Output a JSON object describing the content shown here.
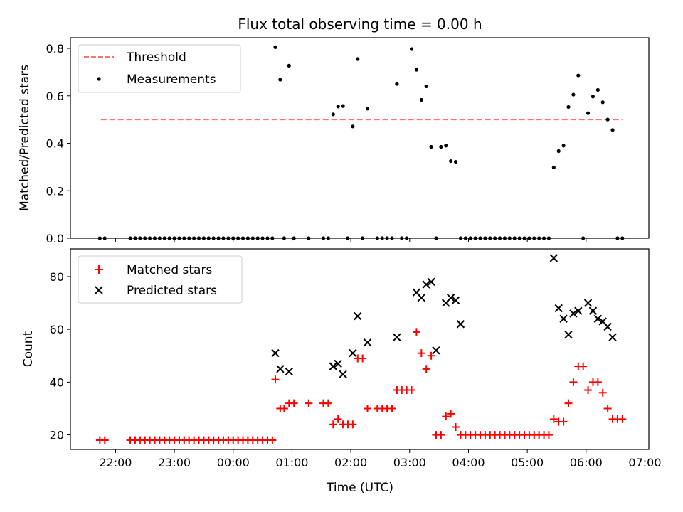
{
  "title": "Flux total observing time = 0.00 h",
  "colors": {
    "threshold": "#ff7070",
    "measurements": "#000000",
    "matched": "#ff0000",
    "predicted": "#000000"
  },
  "chart_data": [
    {
      "type": "scatter",
      "ylabel": "Matched/Predicted stars",
      "ylim": [
        0,
        0.845
      ],
      "yticks": [
        "0.0",
        "0.2",
        "0.4",
        "0.6",
        "0.8"
      ],
      "legend_position": "top-left",
      "threshold": {
        "name": "Threshold",
        "value": 0.5,
        "x_range": [
          "21:45",
          "06:37"
        ]
      },
      "series": [
        {
          "name": "Measurements",
          "points": [
            [
              "21:44",
              0
            ],
            [
              "21:49",
              0
            ],
            [
              "22:15",
              0
            ],
            [
              "22:20",
              0
            ],
            [
              "22:25",
              0
            ],
            [
              "22:30",
              0
            ],
            [
              "22:35",
              0
            ],
            [
              "22:40",
              0
            ],
            [
              "22:45",
              0
            ],
            [
              "22:50",
              0
            ],
            [
              "22:55",
              0
            ],
            [
              "23:00",
              0
            ],
            [
              "23:05",
              0
            ],
            [
              "23:10",
              0
            ],
            [
              "23:15",
              0
            ],
            [
              "23:20",
              0
            ],
            [
              "23:25",
              0
            ],
            [
              "23:30",
              0
            ],
            [
              "23:35",
              0
            ],
            [
              "23:40",
              0
            ],
            [
              "23:45",
              0
            ],
            [
              "23:50",
              0
            ],
            [
              "23:55",
              0
            ],
            [
              "00:00",
              0
            ],
            [
              "00:05",
              0
            ],
            [
              "00:10",
              0
            ],
            [
              "00:15",
              0
            ],
            [
              "00:20",
              0
            ],
            [
              "00:25",
              0
            ],
            [
              "00:30",
              0
            ],
            [
              "00:35",
              0
            ],
            [
              "00:40",
              0
            ],
            [
              "00:43",
              0.805
            ],
            [
              "00:48",
              0.668
            ],
            [
              "00:52",
              0
            ],
            [
              "00:57",
              0.727
            ],
            [
              "01:02",
              0
            ],
            [
              "01:17",
              0
            ],
            [
              "01:32",
              0
            ],
            [
              "01:37",
              0
            ],
            [
              "01:42",
              0.522
            ],
            [
              "01:47",
              0.555
            ],
            [
              "01:52",
              0.557
            ],
            [
              "01:57",
              0
            ],
            [
              "02:02",
              0.471
            ],
            [
              "02:07",
              0.755
            ],
            [
              "02:12",
              0
            ],
            [
              "02:17",
              0.546
            ],
            [
              "02:27",
              0
            ],
            [
              "02:32",
              0
            ],
            [
              "02:37",
              0
            ],
            [
              "02:42",
              0
            ],
            [
              "02:47",
              0.65
            ],
            [
              "02:52",
              0
            ],
            [
              "02:57",
              0
            ],
            [
              "03:02",
              0.797
            ],
            [
              "03:07",
              0.71
            ],
            [
              "03:12",
              0.583
            ],
            [
              "03:17",
              0.64
            ],
            [
              "03:22",
              0.385
            ],
            [
              "03:27",
              0
            ],
            [
              "03:32",
              0.385
            ],
            [
              "03:37",
              0.39
            ],
            [
              "03:42",
              0.325
            ],
            [
              "03:47",
              0.322
            ],
            [
              "03:52",
              0
            ],
            [
              "03:57",
              0
            ],
            [
              "04:02",
              0
            ],
            [
              "04:07",
              0
            ],
            [
              "04:12",
              0
            ],
            [
              "04:17",
              0
            ],
            [
              "04:22",
              0
            ],
            [
              "04:27",
              0
            ],
            [
              "04:32",
              0
            ],
            [
              "04:37",
              0
            ],
            [
              "04:42",
              0
            ],
            [
              "04:47",
              0
            ],
            [
              "04:52",
              0
            ],
            [
              "04:57",
              0
            ],
            [
              "05:02",
              0
            ],
            [
              "05:07",
              0
            ],
            [
              "05:12",
              0
            ],
            [
              "05:17",
              0
            ],
            [
              "05:22",
              0
            ],
            [
              "05:27",
              0.298
            ],
            [
              "05:32",
              0.367
            ],
            [
              "05:37",
              0.39
            ],
            [
              "05:42",
              0.553
            ],
            [
              "05:47",
              0.605
            ],
            [
              "05:52",
              0.686
            ],
            [
              "05:57",
              0
            ],
            [
              "06:02",
              0.527
            ],
            [
              "06:07",
              0.597
            ],
            [
              "06:12",
              0.625
            ],
            [
              "06:17",
              0.573
            ],
            [
              "06:22",
              0.5
            ],
            [
              "06:27",
              0.456
            ],
            [
              "06:32",
              0
            ],
            [
              "06:37",
              0
            ]
          ]
        }
      ]
    },
    {
      "type": "scatter",
      "xlabel": "Time (UTC)",
      "ylabel": "Count",
      "xlim": [
        "21:14",
        "07:04"
      ],
      "xticks": [
        "22:00",
        "23:00",
        "00:00",
        "01:00",
        "02:00",
        "03:00",
        "04:00",
        "05:00",
        "06:00",
        "07:00"
      ],
      "ylim": [
        14.5,
        90.5
      ],
      "yticks": [
        "20",
        "40",
        "60",
        "80"
      ],
      "legend_position": "top-left",
      "series": [
        {
          "name": "Matched stars",
          "marker": "+",
          "points": [
            [
              "21:44",
              18
            ],
            [
              "21:49",
              18
            ],
            [
              "22:15",
              18
            ],
            [
              "22:20",
              18
            ],
            [
              "22:25",
              18
            ],
            [
              "22:30",
              18
            ],
            [
              "22:35",
              18
            ],
            [
              "22:40",
              18
            ],
            [
              "22:45",
              18
            ],
            [
              "22:50",
              18
            ],
            [
              "22:55",
              18
            ],
            [
              "23:00",
              18
            ],
            [
              "23:05",
              18
            ],
            [
              "23:10",
              18
            ],
            [
              "23:15",
              18
            ],
            [
              "23:20",
              18
            ],
            [
              "23:25",
              18
            ],
            [
              "23:30",
              18
            ],
            [
              "23:35",
              18
            ],
            [
              "23:40",
              18
            ],
            [
              "23:45",
              18
            ],
            [
              "23:50",
              18
            ],
            [
              "23:55",
              18
            ],
            [
              "00:00",
              18
            ],
            [
              "00:05",
              18
            ],
            [
              "00:10",
              18
            ],
            [
              "00:15",
              18
            ],
            [
              "00:20",
              18
            ],
            [
              "00:25",
              18
            ],
            [
              "00:30",
              18
            ],
            [
              "00:35",
              18
            ],
            [
              "00:40",
              18
            ],
            [
              "00:43",
              41
            ],
            [
              "00:48",
              30
            ],
            [
              "00:52",
              30
            ],
            [
              "00:57",
              32
            ],
            [
              "01:02",
              32
            ],
            [
              "01:17",
              32
            ],
            [
              "01:32",
              32
            ],
            [
              "01:37",
              32
            ],
            [
              "01:42",
              24
            ],
            [
              "01:47",
              26
            ],
            [
              "01:52",
              24
            ],
            [
              "01:57",
              24
            ],
            [
              "02:02",
              24
            ],
            [
              "02:07",
              49
            ],
            [
              "02:12",
              49
            ],
            [
              "02:17",
              30
            ],
            [
              "02:27",
              30
            ],
            [
              "02:32",
              30
            ],
            [
              "02:37",
              30
            ],
            [
              "02:42",
              30
            ],
            [
              "02:47",
              37
            ],
            [
              "02:52",
              37
            ],
            [
              "02:57",
              37
            ],
            [
              "03:02",
              37
            ],
            [
              "03:07",
              59
            ],
            [
              "03:12",
              51
            ],
            [
              "03:17",
              45
            ],
            [
              "03:22",
              50
            ],
            [
              "03:27",
              20
            ],
            [
              "03:32",
              20
            ],
            [
              "03:37",
              27
            ],
            [
              "03:42",
              28
            ],
            [
              "03:47",
              23
            ],
            [
              "03:52",
              20
            ],
            [
              "03:57",
              20
            ],
            [
              "04:02",
              20
            ],
            [
              "04:07",
              20
            ],
            [
              "04:12",
              20
            ],
            [
              "04:17",
              20
            ],
            [
              "04:22",
              20
            ],
            [
              "04:27",
              20
            ],
            [
              "04:32",
              20
            ],
            [
              "04:37",
              20
            ],
            [
              "04:42",
              20
            ],
            [
              "04:47",
              20
            ],
            [
              "04:52",
              20
            ],
            [
              "04:57",
              20
            ],
            [
              "05:02",
              20
            ],
            [
              "05:07",
              20
            ],
            [
              "05:12",
              20
            ],
            [
              "05:17",
              20
            ],
            [
              "05:22",
              20
            ],
            [
              "05:27",
              26
            ],
            [
              "05:32",
              25
            ],
            [
              "05:37",
              25
            ],
            [
              "05:42",
              32
            ],
            [
              "05:47",
              40
            ],
            [
              "05:52",
              46
            ],
            [
              "05:57",
              46
            ],
            [
              "06:02",
              37
            ],
            [
              "06:07",
              40
            ],
            [
              "06:12",
              40
            ],
            [
              "06:17",
              36
            ],
            [
              "06:22",
              30
            ],
            [
              "06:27",
              26
            ],
            [
              "06:32",
              26
            ],
            [
              "06:37",
              26
            ]
          ]
        },
        {
          "name": "Predicted stars",
          "marker": "x",
          "points": [
            [
              "00:43",
              51
            ],
            [
              "00:48",
              45
            ],
            [
              "00:57",
              44
            ],
            [
              "01:42",
              46
            ],
            [
              "01:47",
              47
            ],
            [
              "01:52",
              43
            ],
            [
              "02:02",
              51
            ],
            [
              "02:07",
              65
            ],
            [
              "02:17",
              55
            ],
            [
              "02:47",
              57
            ],
            [
              "03:07",
              74
            ],
            [
              "03:12",
              72
            ],
            [
              "03:17",
              77
            ],
            [
              "03:22",
              78
            ],
            [
              "03:27",
              52
            ],
            [
              "03:37",
              70
            ],
            [
              "03:42",
              72
            ],
            [
              "03:47",
              71
            ],
            [
              "03:52",
              62
            ],
            [
              "05:27",
              87
            ],
            [
              "05:32",
              68
            ],
            [
              "05:37",
              64
            ],
            [
              "05:42",
              58
            ],
            [
              "05:47",
              66
            ],
            [
              "05:52",
              67
            ],
            [
              "06:02",
              70
            ],
            [
              "06:07",
              67
            ],
            [
              "06:12",
              64
            ],
            [
              "06:17",
              63
            ],
            [
              "06:22",
              61
            ],
            [
              "06:27",
              57
            ]
          ]
        }
      ]
    }
  ]
}
